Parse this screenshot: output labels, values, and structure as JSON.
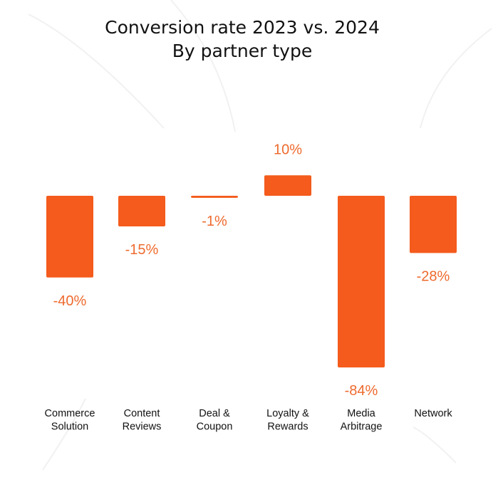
{
  "colors": {
    "bar": "#F45B1C",
    "label": "#EE6A2E",
    "text": "#111111",
    "background": "#FFFFFF"
  },
  "chart_data": {
    "type": "bar",
    "title": "Conversion rate 2023 vs. 2024",
    "subtitle": "By partner type",
    "xlabel": "",
    "ylabel": "",
    "categories": [
      [
        "Commerce",
        "Solution"
      ],
      [
        "Content",
        "Reviews"
      ],
      [
        "Deal &",
        "Coupon"
      ],
      [
        "Loyalty &",
        "Rewards"
      ],
      [
        "Media",
        "Arbitrage"
      ],
      [
        "Network"
      ]
    ],
    "values": [
      -40,
      -15,
      -1,
      10,
      -84,
      -28
    ],
    "value_labels": [
      "-40%",
      "-15%",
      "-1%",
      "10%",
      "-84%",
      "-28%"
    ],
    "unit": "%",
    "ylim": [
      -84,
      10
    ],
    "grid": false,
    "legend": "none",
    "axes_visible": false
  }
}
